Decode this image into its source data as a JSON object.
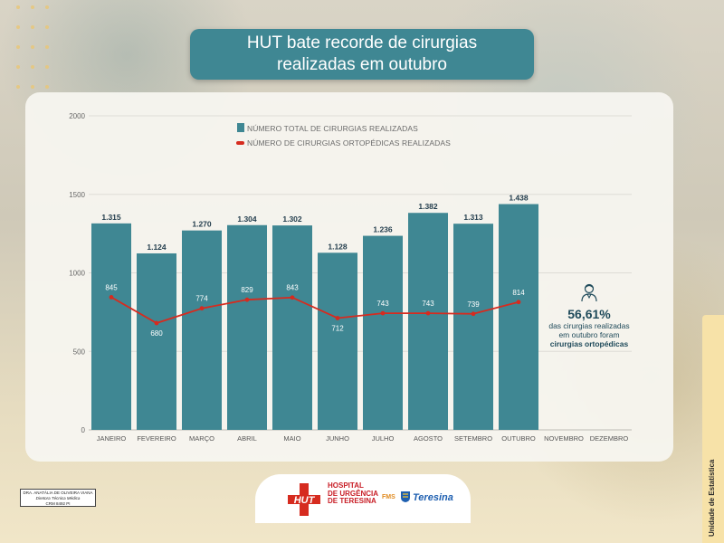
{
  "title": {
    "line1": "HUT bate recorde de cirurgias",
    "line2": "realizadas em outubro"
  },
  "colors": {
    "bars": "#3f8793",
    "line": "#d62b1f",
    "title_bg": "#3f8793",
    "callout_text": "#1f4a5a"
  },
  "chart_data": {
    "type": "bar",
    "categories": [
      "JANEIRO",
      "FEVEREIRO",
      "MARÇO",
      "ABRIL",
      "MAIO",
      "JUNHO",
      "JULHO",
      "AGOSTO",
      "SETEMBRO",
      "OUTUBRO",
      "NOVEMBRO",
      "DEZEMBRO"
    ],
    "series": [
      {
        "name": "NÚMERO TOTAL DE CIRURGIAS REALIZADAS",
        "type": "bar",
        "values": [
          1315,
          1124,
          1270,
          1304,
          1302,
          1128,
          1236,
          1382,
          1313,
          1438,
          null,
          null
        ],
        "labels": [
          "1.315",
          "1.124",
          "1.270",
          "1.304",
          "1.302",
          "1.128",
          "1.236",
          "1.382",
          "1.313",
          "1.438",
          "",
          ""
        ]
      },
      {
        "name": "NÚMERO DE CIRURGIAS ORTOPÉDICAS REALIZADAS",
        "type": "line",
        "values": [
          845,
          680,
          774,
          829,
          843,
          712,
          743,
          743,
          739,
          814,
          null,
          null
        ],
        "labels": [
          "845",
          "680",
          "774",
          "829",
          "843",
          "712",
          "743",
          "743",
          "739",
          "814",
          "",
          ""
        ]
      }
    ],
    "ylim": [
      0,
      2000
    ],
    "yticks": [
      0,
      500,
      1000,
      1500,
      2000
    ],
    "grid": true,
    "legend_position": "top"
  },
  "callout": {
    "percent": "56,61%",
    "line1": "das cirurgias realizadas",
    "line2": "em outubro foram",
    "line3": "cirurgias ortopédicas",
    "icon": "doctor-icon"
  },
  "side_tab": {
    "text": "Unidade de Estatística"
  },
  "signature": {
    "name": "DRA. ANATÁLIA DE OLIVEIRA VIANA",
    "role": "Diretora Técnica Médica",
    "crm": "CRM 8492 PI"
  },
  "footer": {
    "hut_badge": "HUT",
    "hospital_line1": "HOSPITAL",
    "hospital_line2": "DE URGÊNCIA",
    "hospital_line3": "DE TERESINA",
    "fms": "FMS",
    "teresina": "Teresina"
  }
}
